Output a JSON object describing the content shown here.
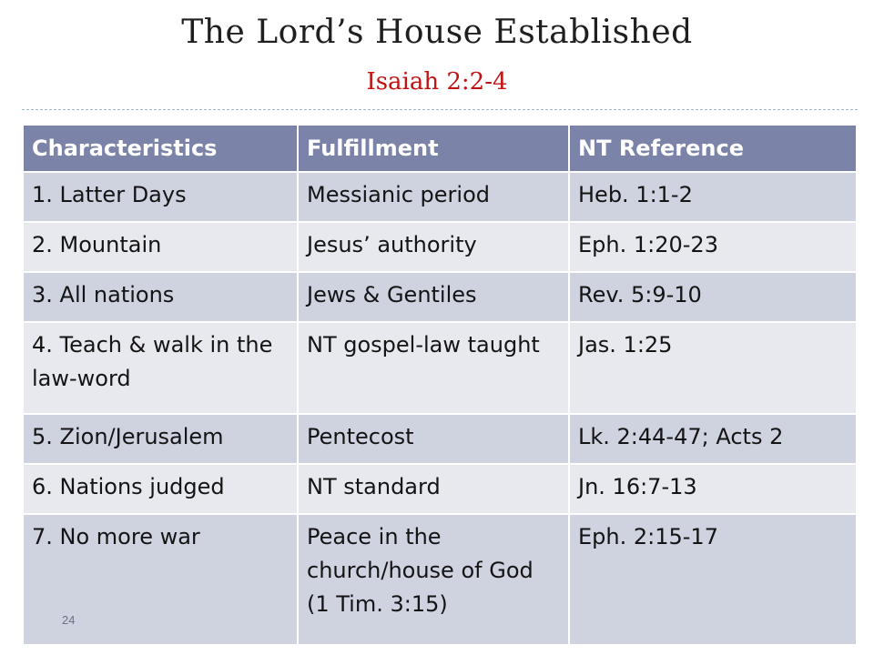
{
  "slide": {
    "title": "The Lord’s House Established",
    "subtitle": "Isaiah 2:2-4",
    "page_number": "24",
    "colors": {
      "header_fill": "#7b84a8",
      "row_dark": "#cfd2df",
      "row_light": "#e8e9ef",
      "subtitle_text": "#c01313"
    }
  },
  "table": {
    "headers": [
      "Characteristics",
      "Fulfillment",
      "NT Reference"
    ],
    "rows": [
      [
        "1. Latter Days",
        "Messianic period",
        "Heb. 1:1-2"
      ],
      [
        "2. Mountain",
        "Jesus’ authority",
        "Eph. 1:20-23"
      ],
      [
        "3. All nations",
        "Jews & Gentiles",
        "Rev. 5:9-10"
      ],
      [
        "4. Teach & walk in the law-word",
        "NT gospel-law taught",
        "Jas. 1:25"
      ],
      [
        "5. Zion/Jerusalem",
        "Pentecost",
        "Lk. 2:44-47; Acts 2"
      ],
      [
        "6. Nations judged",
        "NT standard",
        "Jn. 16:7-13"
      ],
      [
        "7. No more war",
        "Peace in the church/house of God (1 Tim. 3:15)",
        "Eph. 2:15-17"
      ]
    ]
  }
}
